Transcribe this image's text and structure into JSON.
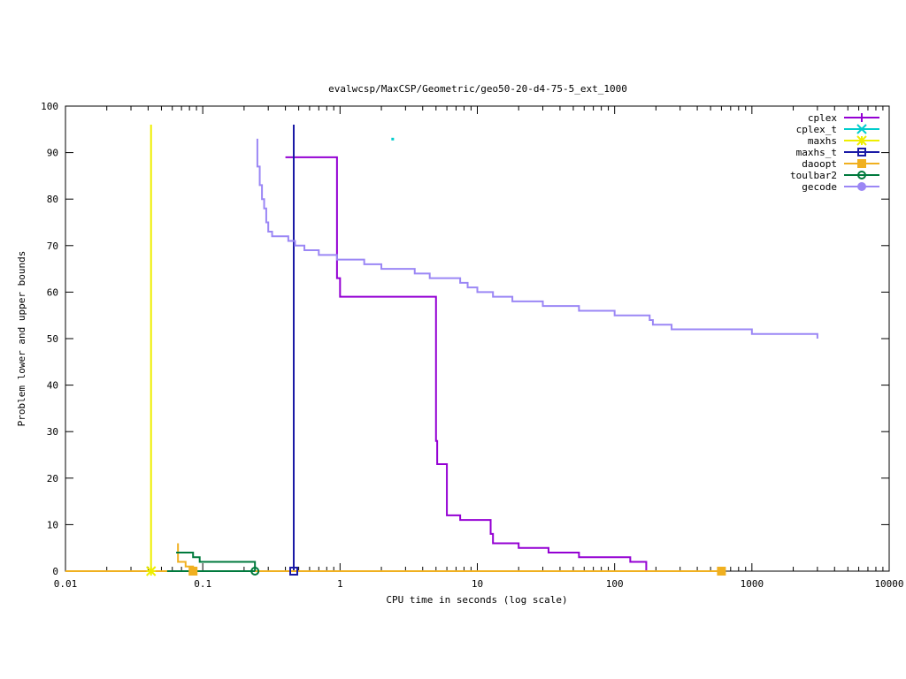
{
  "chart_data": {
    "type": "line",
    "title": "evalwcsp/MaxCSP/Geometric/geo50-20-d4-75-5_ext_1000",
    "xlabel": "CPU time in seconds (log scale)",
    "ylabel": "Problem lower and upper bounds",
    "xscale": "log",
    "xlim": [
      0.01,
      10000
    ],
    "ylim": [
      0,
      100
    ],
    "xticks": [
      {
        "value": 0.01,
        "label": "0.01"
      },
      {
        "value": 0.1,
        "label": "0.1"
      },
      {
        "value": 1,
        "label": "1"
      },
      {
        "value": 10,
        "label": "10"
      },
      {
        "value": 100,
        "label": "100"
      },
      {
        "value": 1000,
        "label": "1000"
      },
      {
        "value": 10000,
        "label": "10000"
      }
    ],
    "yticks": [
      {
        "value": 0,
        "label": "0"
      },
      {
        "value": 10,
        "label": "10"
      },
      {
        "value": 20,
        "label": "20"
      },
      {
        "value": 30,
        "label": "30"
      },
      {
        "value": 40,
        "label": "40"
      },
      {
        "value": 50,
        "label": "50"
      },
      {
        "value": 60,
        "label": "60"
      },
      {
        "value": 70,
        "label": "70"
      },
      {
        "value": 80,
        "label": "80"
      },
      {
        "value": 90,
        "label": "90"
      },
      {
        "value": 100,
        "label": "100"
      }
    ],
    "legend_position": "top-right",
    "series": [
      {
        "name": "cplex",
        "color": "#9400d3",
        "marker": "plus",
        "upper": [
          [
            0.4,
            89
          ],
          [
            0.95,
            89
          ],
          [
            0.95,
            63
          ],
          [
            1.0,
            63
          ],
          [
            1.0,
            59
          ],
          [
            5.0,
            59
          ],
          [
            5.0,
            28
          ],
          [
            5.1,
            28
          ],
          [
            5.1,
            23
          ],
          [
            6.0,
            23
          ],
          [
            6.0,
            12
          ],
          [
            7.5,
            12
          ],
          [
            7.5,
            11
          ],
          [
            12.5,
            11
          ],
          [
            12.5,
            8
          ],
          [
            13.0,
            8
          ],
          [
            13.0,
            6
          ],
          [
            20,
            6
          ],
          [
            20,
            5
          ],
          [
            33,
            5
          ],
          [
            33,
            4
          ],
          [
            55,
            4
          ],
          [
            55,
            3
          ],
          [
            130,
            3
          ],
          [
            130,
            2
          ],
          [
            170,
            2
          ],
          [
            170,
            0
          ]
        ],
        "lower": [
          [
            0.01,
            0
          ],
          [
            170,
            0
          ]
        ]
      },
      {
        "name": "cplex_t",
        "color": "#00cccc",
        "marker": "cross",
        "upper": [
          [
            2.4,
            93
          ]
        ],
        "lower": []
      },
      {
        "name": "maxhs",
        "color": "#eeee00",
        "marker": "star",
        "upper": [
          [
            0.042,
            96
          ],
          [
            0.042,
            0
          ]
        ],
        "lower": [
          [
            0.042,
            0
          ]
        ]
      },
      {
        "name": "maxhs_t",
        "color": "#1a1aa6",
        "marker": "square",
        "upper": [
          [
            0.46,
            96
          ],
          [
            0.46,
            0
          ]
        ],
        "lower": [
          [
            0.46,
            0
          ]
        ]
      },
      {
        "name": "daoopt",
        "color": "#f0b020",
        "marker": "filled-square",
        "upper": [
          [
            0.066,
            6
          ],
          [
            0.066,
            2
          ],
          [
            0.075,
            2
          ],
          [
            0.075,
            1
          ],
          [
            0.085,
            1
          ],
          [
            0.085,
            0
          ]
        ],
        "lower": [
          [
            0.01,
            0
          ],
          [
            600,
            0
          ]
        ]
      },
      {
        "name": "toulbar2",
        "color": "#007a3d",
        "marker": "circle",
        "upper": [
          [
            0.064,
            4
          ],
          [
            0.085,
            4
          ],
          [
            0.085,
            3
          ],
          [
            0.095,
            3
          ],
          [
            0.095,
            2
          ],
          [
            0.24,
            2
          ],
          [
            0.24,
            0
          ]
        ],
        "lower": [
          [
            0.055,
            0
          ],
          [
            0.24,
            0
          ]
        ]
      },
      {
        "name": "gecode",
        "color": "#9b87f5",
        "marker": "filled-circle",
        "upper": [
          [
            0.25,
            93
          ],
          [
            0.25,
            87
          ],
          [
            0.26,
            87
          ],
          [
            0.26,
            83
          ],
          [
            0.27,
            83
          ],
          [
            0.27,
            80
          ],
          [
            0.28,
            80
          ],
          [
            0.28,
            78
          ],
          [
            0.29,
            78
          ],
          [
            0.29,
            75
          ],
          [
            0.3,
            75
          ],
          [
            0.3,
            73
          ],
          [
            0.32,
            73
          ],
          [
            0.32,
            72
          ],
          [
            0.42,
            72
          ],
          [
            0.42,
            71
          ],
          [
            0.47,
            71
          ],
          [
            0.47,
            70
          ],
          [
            0.55,
            70
          ],
          [
            0.55,
            69
          ],
          [
            0.7,
            69
          ],
          [
            0.7,
            68
          ],
          [
            0.95,
            68
          ],
          [
            0.95,
            67
          ],
          [
            1.5,
            67
          ],
          [
            1.5,
            66
          ],
          [
            2.0,
            66
          ],
          [
            2.0,
            65
          ],
          [
            3.5,
            65
          ],
          [
            3.5,
            64
          ],
          [
            4.5,
            64
          ],
          [
            4.5,
            63
          ],
          [
            7.5,
            63
          ],
          [
            7.5,
            62
          ],
          [
            8.5,
            62
          ],
          [
            8.5,
            61
          ],
          [
            10,
            61
          ],
          [
            10,
            60
          ],
          [
            13,
            60
          ],
          [
            13,
            59
          ],
          [
            18,
            59
          ],
          [
            18,
            58
          ],
          [
            30,
            58
          ],
          [
            30,
            57
          ],
          [
            55,
            57
          ],
          [
            55,
            56
          ],
          [
            100,
            56
          ],
          [
            100,
            55
          ],
          [
            180,
            55
          ],
          [
            180,
            54
          ],
          [
            190,
            54
          ],
          [
            190,
            53
          ],
          [
            260,
            53
          ],
          [
            260,
            52
          ],
          [
            1000,
            52
          ],
          [
            1000,
            51
          ],
          [
            3000,
            51
          ],
          [
            3000,
            50
          ]
        ],
        "lower": []
      }
    ]
  }
}
